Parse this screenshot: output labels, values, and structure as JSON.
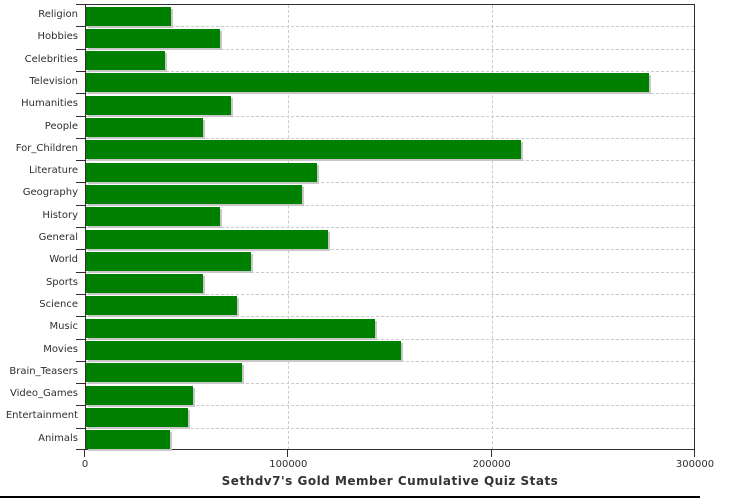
{
  "chart_data": {
    "type": "bar",
    "orientation": "horizontal",
    "title": "Sethdv7's Gold Member Cumulative Quiz Stats",
    "categories": [
      "Religion",
      "Hobbies",
      "Celebrities",
      "Television",
      "Humanities",
      "People",
      "For_Children",
      "Literature",
      "Geography",
      "History",
      "General",
      "World",
      "Sports",
      "Science",
      "Music",
      "Movies",
      "Brain_Teasers",
      "Video_Games",
      "Entertainment",
      "Animals"
    ],
    "values": [
      42000,
      66000,
      39000,
      277000,
      71500,
      57500,
      214000,
      113500,
      106000,
      66000,
      119000,
      81000,
      57500,
      74500,
      142000,
      155000,
      76500,
      52500,
      50000,
      41500
    ],
    "xlabel": "",
    "ylabel": "",
    "xlim": [
      0,
      300000
    ],
    "x_ticks": [
      {
        "value": 0,
        "label": "0"
      },
      {
        "value": 100000,
        "label": "100000"
      },
      {
        "value": 200000,
        "label": "200000"
      },
      {
        "value": 300000,
        "label": "300000"
      }
    ],
    "grid": "dashed",
    "legend_position": "none",
    "colors": {
      "bar": "#008000",
      "bar_shadow": "#c8c8c8",
      "grid": "#cccccc",
      "axis": "#2f2f2f",
      "label": "#2f2f2f",
      "title": "#333333",
      "background": "#ffffff",
      "bottom_rule": "#000000"
    }
  }
}
